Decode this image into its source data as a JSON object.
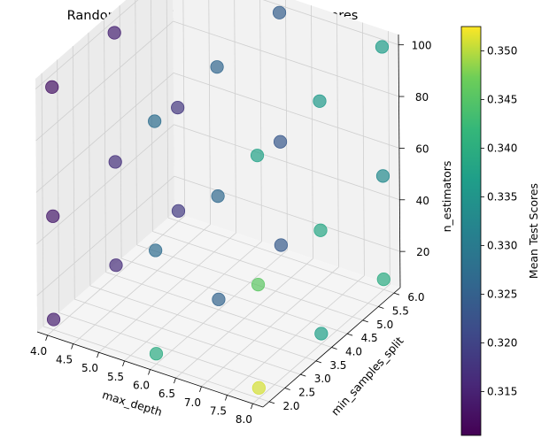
{
  "chart_data": {
    "type": "scatter",
    "subtype": "3d-scatter",
    "title": "Random Forest Grid Search Mean Test Scores",
    "xlabel": "max_depth",
    "ylabel": "min_samples_split",
    "zlabel": "n_estimators",
    "colorbar_label": "Mean Test Scores",
    "colormap": "viridis",
    "colorbar_range": [
      0.3105,
      0.3525
    ],
    "colorbar_ticks": [
      "0.315",
      "0.320",
      "0.325",
      "0.330",
      "0.335",
      "0.340",
      "0.345",
      "0.350"
    ],
    "x_ticks": [
      "4.0",
      "4.5",
      "5.0",
      "5.5",
      "6.0",
      "6.5",
      "7.0",
      "7.5",
      "8.0"
    ],
    "y_ticks": [
      "2.0",
      "2.5",
      "3.0",
      "3.5",
      "4.0",
      "4.5",
      "5.0",
      "5.5",
      "6.0"
    ],
    "z_ticks": [
      "20",
      "40",
      "60",
      "80",
      "100"
    ],
    "xlim": [
      3.8,
      8.2
    ],
    "ylim": [
      1.8,
      6.2
    ],
    "zlim": [
      6,
      104
    ],
    "grid": true,
    "marker_alpha": 0.7,
    "points": [
      {
        "max_depth": 4,
        "min_samples_split": 2,
        "n_estimators": 10,
        "score": 0.3145
      },
      {
        "max_depth": 4,
        "min_samples_split": 2,
        "n_estimators": 50,
        "score": 0.314
      },
      {
        "max_depth": 4,
        "min_samples_split": 2,
        "n_estimators": 100,
        "score": 0.313
      },
      {
        "max_depth": 4,
        "min_samples_split": 4,
        "n_estimators": 10,
        "score": 0.3165
      },
      {
        "max_depth": 4,
        "min_samples_split": 4,
        "n_estimators": 50,
        "score": 0.317
      },
      {
        "max_depth": 4,
        "min_samples_split": 4,
        "n_estimators": 100,
        "score": 0.315
      },
      {
        "max_depth": 4,
        "min_samples_split": 6,
        "n_estimators": 10,
        "score": 0.3185
      },
      {
        "max_depth": 4,
        "min_samples_split": 6,
        "n_estimators": 50,
        "score": 0.318
      },
      {
        "max_depth": 4,
        "min_samples_split": 6,
        "n_estimators": 100,
        "score": 0.3175
      },
      {
        "max_depth": 6,
        "min_samples_split": 2,
        "n_estimators": 10,
        "score": 0.3395
      },
      {
        "max_depth": 6,
        "min_samples_split": 2,
        "n_estimators": 50,
        "score": 0.327
      },
      {
        "max_depth": 6,
        "min_samples_split": 2,
        "n_estimators": 100,
        "score": 0.3275
      },
      {
        "max_depth": 6,
        "min_samples_split": 4,
        "n_estimators": 10,
        "score": 0.3255
      },
      {
        "max_depth": 6,
        "min_samples_split": 4,
        "n_estimators": 50,
        "score": 0.3265
      },
      {
        "max_depth": 6,
        "min_samples_split": 4,
        "n_estimators": 100,
        "score": 0.326
      },
      {
        "max_depth": 6,
        "min_samples_split": 6,
        "n_estimators": 10,
        "score": 0.324
      },
      {
        "max_depth": 6,
        "min_samples_split": 6,
        "n_estimators": 50,
        "score": 0.3235
      },
      {
        "max_depth": 6,
        "min_samples_split": 6,
        "n_estimators": 100,
        "score": 0.3245
      },
      {
        "max_depth": 8,
        "min_samples_split": 2,
        "n_estimators": 10,
        "score": 0.351
      },
      {
        "max_depth": 8,
        "min_samples_split": 2,
        "n_estimators": 50,
        "score": 0.3455
      },
      {
        "max_depth": 8,
        "min_samples_split": 2,
        "n_estimators": 100,
        "score": 0.3375
      },
      {
        "max_depth": 8,
        "min_samples_split": 4,
        "n_estimators": 10,
        "score": 0.337
      },
      {
        "max_depth": 8,
        "min_samples_split": 4,
        "n_estimators": 50,
        "score": 0.3385
      },
      {
        "max_depth": 8,
        "min_samples_split": 4,
        "n_estimators": 100,
        "score": 0.336
      },
      {
        "max_depth": 8,
        "min_samples_split": 6,
        "n_estimators": 10,
        "score": 0.3395
      },
      {
        "max_depth": 8,
        "min_samples_split": 6,
        "n_estimators": 50,
        "score": 0.333
      },
      {
        "max_depth": 8,
        "min_samples_split": 6,
        "n_estimators": 100,
        "score": 0.3365
      }
    ]
  }
}
